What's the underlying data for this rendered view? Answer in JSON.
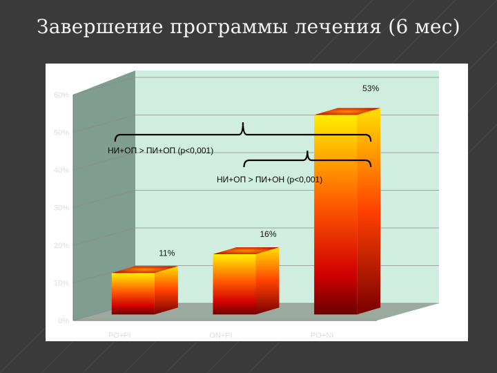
{
  "slide": {
    "title": "Завершение программы лечения (6 мес)"
  },
  "chart_data": {
    "type": "bar",
    "categories": [
      "PO+PI",
      "ON+PI",
      "PO+NI"
    ],
    "values": [
      11,
      16,
      53
    ],
    "data_labels": [
      "11%",
      "16%",
      "53%"
    ],
    "ylim": [
      0,
      60
    ],
    "yticks": [
      "0%",
      "10%",
      "20%",
      "30%",
      "40%",
      "50%",
      "60%"
    ],
    "title": "",
    "xlabel": "",
    "ylabel": "",
    "grid": true,
    "style": "3d",
    "annotations": [
      {
        "text": "НИ+ОП > ПИ+ОП (p<0,001)",
        "from": "PO+PI",
        "to": "PO+NI"
      },
      {
        "text": "НИ+ОП > ПИ+ОН (p<0,001)",
        "from": "ON+PI",
        "to": "PO+NI"
      }
    ],
    "colors": {
      "wall": "#cfeee0",
      "side_wall": "#7f9d90",
      "floor": "#9aaa9f",
      "bar_top": "#ffee00",
      "bar_mid": "#ff3a00",
      "bar_bottom": "#7a0000"
    }
  }
}
